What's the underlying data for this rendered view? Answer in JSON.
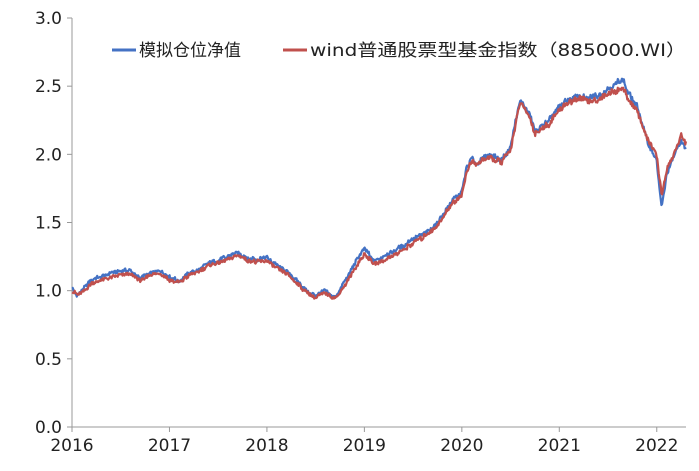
{
  "chart_data": {
    "type": "line",
    "title": "",
    "xlabel": "",
    "ylabel": "",
    "x_ticks": [
      "2016",
      "2017",
      "2018",
      "2019",
      "2020",
      "2021",
      "2022"
    ],
    "y_ticks": [
      "0.0",
      "0.5",
      "1.0",
      "1.5",
      "2.0",
      "2.5",
      "3.0"
    ],
    "xlim": [
      2016.0,
      2022.3
    ],
    "ylim": [
      0,
      3.0
    ],
    "grid": false,
    "legend_position": "top",
    "series": [
      {
        "name": "模拟仓位净值",
        "color": "#4472C4",
        "x": [
          2016.0,
          2016.05,
          2016.1,
          2016.2,
          2016.3,
          2016.4,
          2016.5,
          2016.6,
          2016.7,
          2016.8,
          2016.9,
          2017.0,
          2017.1,
          2017.2,
          2017.3,
          2017.4,
          2017.5,
          2017.6,
          2017.7,
          2017.8,
          2017.9,
          2018.0,
          2018.1,
          2018.2,
          2018.3,
          2018.4,
          2018.5,
          2018.6,
          2018.7,
          2018.8,
          2018.9,
          2019.0,
          2019.1,
          2019.2,
          2019.3,
          2019.4,
          2019.5,
          2019.6,
          2019.7,
          2019.8,
          2019.9,
          2020.0,
          2020.05,
          2020.1,
          2020.15,
          2020.2,
          2020.3,
          2020.4,
          2020.5,
          2020.55,
          2020.6,
          2020.7,
          2020.75,
          2020.8,
          2020.9,
          2021.0,
          2021.1,
          2021.2,
          2021.3,
          2021.4,
          2021.5,
          2021.55,
          2021.6,
          2021.65,
          2021.7,
          2021.8,
          2021.9,
          2022.0,
          2022.05,
          2022.1,
          2022.2,
          2022.25,
          2022.3
        ],
        "values": [
          1.03,
          0.96,
          1.0,
          1.08,
          1.1,
          1.13,
          1.14,
          1.15,
          1.09,
          1.13,
          1.15,
          1.1,
          1.07,
          1.13,
          1.16,
          1.2,
          1.22,
          1.25,
          1.28,
          1.24,
          1.23,
          1.24,
          1.19,
          1.15,
          1.08,
          1.0,
          0.96,
          1.0,
          0.95,
          1.07,
          1.2,
          1.31,
          1.22,
          1.25,
          1.29,
          1.33,
          1.38,
          1.41,
          1.46,
          1.55,
          1.66,
          1.72,
          1.9,
          1.97,
          1.93,
          1.96,
          2.0,
          1.95,
          2.05,
          2.25,
          2.4,
          2.28,
          2.17,
          2.19,
          2.25,
          2.35,
          2.4,
          2.43,
          2.41,
          2.43,
          2.48,
          2.51,
          2.53,
          2.55,
          2.46,
          2.35,
          2.1,
          1.95,
          1.6,
          1.85,
          2.02,
          2.1,
          2.04
        ]
      },
      {
        "name": "wind普通股票型基金指数（885000.WI）",
        "color": "#C0504D",
        "x": [
          2016.0,
          2016.05,
          2016.1,
          2016.2,
          2016.3,
          2016.4,
          2016.5,
          2016.6,
          2016.7,
          2016.8,
          2016.9,
          2017.0,
          2017.1,
          2017.2,
          2017.3,
          2017.4,
          2017.5,
          2017.6,
          2017.7,
          2017.8,
          2017.9,
          2018.0,
          2018.1,
          2018.2,
          2018.3,
          2018.4,
          2018.5,
          2018.6,
          2018.7,
          2018.8,
          2018.9,
          2019.0,
          2019.1,
          2019.2,
          2019.3,
          2019.4,
          2019.5,
          2019.6,
          2019.7,
          2019.8,
          2019.9,
          2020.0,
          2020.05,
          2020.1,
          2020.15,
          2020.2,
          2020.3,
          2020.4,
          2020.5,
          2020.55,
          2020.6,
          2020.7,
          2020.75,
          2020.8,
          2020.9,
          2021.0,
          2021.1,
          2021.2,
          2021.3,
          2021.4,
          2021.5,
          2021.55,
          2021.6,
          2021.65,
          2021.7,
          2021.8,
          2021.9,
          2022.0,
          2022.05,
          2022.1,
          2022.2,
          2022.25,
          2022.3
        ],
        "values": [
          1.0,
          0.97,
          0.99,
          1.05,
          1.08,
          1.1,
          1.11,
          1.12,
          1.07,
          1.11,
          1.13,
          1.08,
          1.06,
          1.11,
          1.14,
          1.18,
          1.2,
          1.23,
          1.26,
          1.22,
          1.21,
          1.22,
          1.17,
          1.13,
          1.06,
          0.99,
          0.95,
          0.98,
          0.94,
          1.04,
          1.16,
          1.27,
          1.19,
          1.22,
          1.26,
          1.3,
          1.35,
          1.39,
          1.44,
          1.53,
          1.64,
          1.7,
          1.88,
          1.95,
          1.92,
          1.95,
          1.98,
          1.94,
          2.03,
          2.22,
          2.38,
          2.26,
          2.15,
          2.17,
          2.23,
          2.33,
          2.38,
          2.41,
          2.39,
          2.4,
          2.44,
          2.46,
          2.47,
          2.48,
          2.42,
          2.32,
          2.12,
          1.98,
          1.7,
          1.88,
          2.05,
          2.13,
          2.09
        ]
      }
    ]
  }
}
